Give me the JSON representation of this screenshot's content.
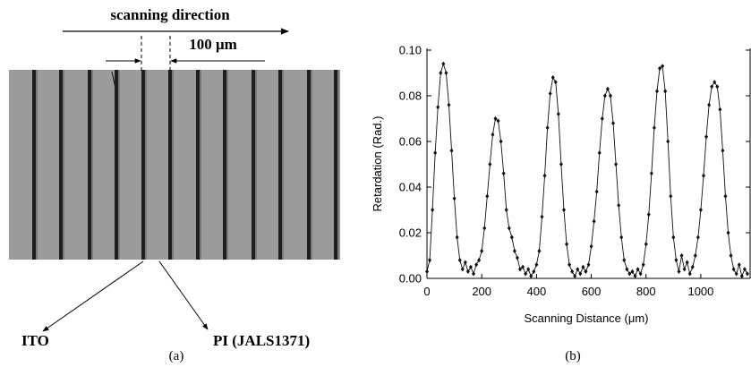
{
  "panel_a": {
    "direction": "scanning direction",
    "scale": "100 μm",
    "label_left": "ITO",
    "label_right": "PI (JALS1371)",
    "caption": "(a)"
  },
  "chart_data": {
    "type": "line",
    "caption": "(b)",
    "x_label": "Scanning Distance (μm)",
    "y_label": "Retardation (Rad.)",
    "xlim": [
      0,
      1180
    ],
    "xticks": [
      0,
      200,
      400,
      600,
      800,
      1000
    ],
    "ylim": [
      0,
      0.1
    ],
    "yticks": [
      {
        "value": 0,
        "label": "0.00"
      },
      {
        "value": 0.02,
        "label": "0.02"
      },
      {
        "value": 0.04,
        "label": "0.04"
      },
      {
        "value": 0.06,
        "label": "0.06"
      },
      {
        "value": 0.08,
        "label": "0.08"
      },
      {
        "value": 0.1,
        "label": "0.10"
      }
    ],
    "series": [
      {
        "color": "#111111",
        "x": [
          0,
          10,
          20,
          30,
          40,
          50,
          60,
          70,
          80,
          90,
          100,
          110,
          120,
          130,
          140,
          150,
          160,
          170,
          180,
          190,
          200,
          210,
          220,
          230,
          240,
          250,
          260,
          270,
          280,
          290,
          300,
          310,
          320,
          330,
          340,
          350,
          360,
          370,
          380,
          390,
          400,
          410,
          420,
          430,
          440,
          450,
          460,
          470,
          480,
          490,
          500,
          510,
          520,
          530,
          540,
          550,
          560,
          570,
          580,
          590,
          600,
          610,
          620,
          630,
          640,
          650,
          660,
          670,
          680,
          690,
          700,
          710,
          720,
          730,
          740,
          750,
          760,
          770,
          780,
          790,
          800,
          810,
          820,
          830,
          840,
          850,
          860,
          870,
          880,
          890,
          900,
          910,
          920,
          930,
          940,
          950,
          960,
          970,
          980,
          990,
          1000,
          1010,
          1020,
          1030,
          1040,
          1050,
          1060,
          1070,
          1080,
          1090,
          1100,
          1110,
          1120,
          1130,
          1140,
          1150,
          1160,
          1170
        ],
        "values": [
          0.003,
          0.008,
          0.03,
          0.055,
          0.075,
          0.09,
          0.094,
          0.09,
          0.076,
          0.056,
          0.035,
          0.018,
          0.008,
          0.004,
          0.007,
          0.003,
          0.005,
          0.002,
          0.006,
          0.008,
          0.012,
          0.022,
          0.036,
          0.05,
          0.063,
          0.07,
          0.069,
          0.06,
          0.046,
          0.03,
          0.022,
          0.018,
          0.012,
          0.009,
          0.004,
          0.005,
          0.002,
          0.004,
          0.001,
          0.003,
          0.006,
          0.012,
          0.027,
          0.045,
          0.066,
          0.081,
          0.088,
          0.086,
          0.072,
          0.05,
          0.03,
          0.015,
          0.006,
          0.003,
          0.001,
          0.004,
          0.002,
          0.005,
          0.003,
          0.006,
          0.014,
          0.025,
          0.038,
          0.055,
          0.07,
          0.08,
          0.083,
          0.08,
          0.068,
          0.05,
          0.032,
          0.018,
          0.008,
          0.004,
          0.002,
          0.003,
          0.001,
          0.004,
          0.002,
          0.006,
          0.015,
          0.028,
          0.046,
          0.066,
          0.082,
          0.092,
          0.093,
          0.082,
          0.06,
          0.036,
          0.018,
          0.008,
          0.003,
          0.01,
          0.004,
          0.007,
          0.002,
          0.005,
          0.01,
          0.018,
          0.03,
          0.045,
          0.062,
          0.076,
          0.084,
          0.086,
          0.084,
          0.074,
          0.056,
          0.036,
          0.02,
          0.01,
          0.004,
          0.002,
          0.006,
          0.001,
          0.004,
          0.002
        ]
      }
    ]
  }
}
